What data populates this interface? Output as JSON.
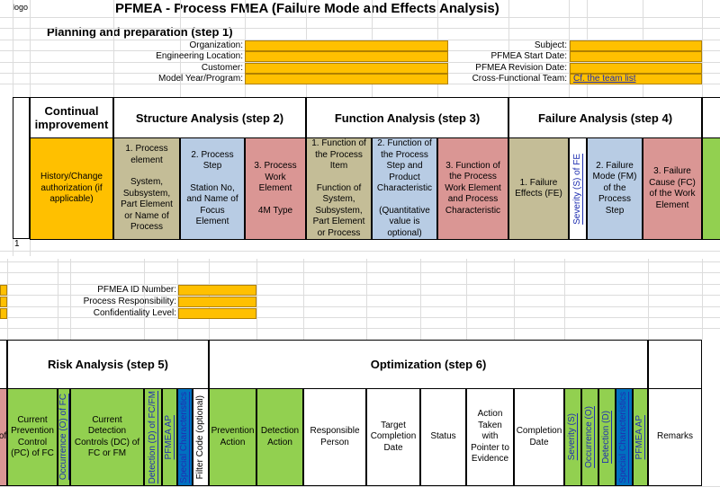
{
  "header": {
    "logo": "logo",
    "title": "PFMEA - Process FMEA (Failure Mode and Effects Analysis)"
  },
  "planning": {
    "title": "Planning and preparation (step 1)",
    "left_fields": [
      {
        "label": "Organization:"
      },
      {
        "label": "Engineering Location:"
      },
      {
        "label": "Customer:"
      },
      {
        "label": "Model Year/Program:"
      }
    ],
    "right_fields": [
      {
        "label": "Subject:"
      },
      {
        "label": "PFMEA Start Date:"
      },
      {
        "label": "PFMEA Revision Date:"
      },
      {
        "label": "Cross-Functional Team:",
        "value": "Cf. the team list"
      }
    ]
  },
  "sheet_top": {
    "sections": [
      {
        "title": "Continual improvement"
      },
      {
        "title": "Structure Analysis (step 2)"
      },
      {
        "title": "Function Analysis (step 3)"
      },
      {
        "title": "Failure Analysis (step 4)"
      }
    ],
    "columns": [
      {
        "paragraphs": [
          "History/Change authorization (if applicable)"
        ]
      },
      {
        "paragraphs": [
          "1. Process element",
          "System, Subsystem, Part Element or Name of Process"
        ]
      },
      {
        "paragraphs": [
          "2. Process Step",
          "Station No, and Name of Focus Element"
        ]
      },
      {
        "paragraphs": [
          "3. Process Work Element",
          "4M Type"
        ]
      },
      {
        "paragraphs": [
          "1. Function of the Process Item",
          "Function of System, Subsystem, Part Element or Process"
        ]
      },
      {
        "paragraphs": [
          "2. Function of the Process Step and Product Characteristic",
          "(Quantitative value is optional)"
        ]
      },
      {
        "paragraphs": [
          "3. Function of the Process Work Element and Process Characteristic"
        ]
      },
      {
        "paragraphs": [
          "1. Failure Effects (FE)"
        ]
      },
      {
        "paragraphs": [
          "Severity (S) of FE"
        ]
      },
      {
        "paragraphs": [
          "2. Failure Mode (FM) of the Process Step"
        ]
      },
      {
        "paragraphs": [
          "3. Failure Cause (FC) of the Work Element"
        ]
      }
    ],
    "rows": [
      "1"
    ]
  },
  "sheet_bottom": {
    "fields": [
      {
        "label": "PFMEA ID Number:"
      },
      {
        "label": "Process Responsibility:"
      },
      {
        "label": "Confidentiality Level:"
      }
    ],
    "sections": [
      {
        "title": "Risk Analysis (step 5)"
      },
      {
        "title": "Optimization (step 6)"
      }
    ],
    "columns": [
      {
        "paragraphs": [
          "of"
        ]
      },
      {
        "paragraphs": [
          "Current Prevention Control (PC) of FC"
        ]
      },
      {
        "paragraphs": [
          "Occurrence (O) of FC"
        ]
      },
      {
        "paragraphs": [
          "Current Detection Controls (DC) of FC or FM"
        ]
      },
      {
        "paragraphs": [
          "Detection (D) of FC/FM"
        ]
      },
      {
        "paragraphs": [
          "PFMEA AP"
        ]
      },
      {
        "paragraphs": [
          "Special Characteristics"
        ]
      },
      {
        "paragraphs": [
          "Filter Code (optional)"
        ]
      },
      {
        "paragraphs": [
          "Prevention Action"
        ]
      },
      {
        "paragraphs": [
          "Detection Action"
        ]
      },
      {
        "paragraphs": [
          "Responsible Person"
        ]
      },
      {
        "paragraphs": [
          "Target Completion Date"
        ]
      },
      {
        "paragraphs": [
          "Status"
        ]
      },
      {
        "paragraphs": [
          "Action Taken with Pointer to Evidence"
        ]
      },
      {
        "paragraphs": [
          "Completion Date"
        ]
      },
      {
        "paragraphs": [
          "Severity (S)"
        ]
      },
      {
        "paragraphs": [
          "Occurrence (O)"
        ]
      },
      {
        "paragraphs": [
          "Detection (D)"
        ]
      },
      {
        "paragraphs": [
          "Special Characteristics"
        ]
      },
      {
        "paragraphs": [
          "PFMEA AP"
        ]
      },
      {
        "paragraphs": [
          "Remarks"
        ]
      }
    ]
  }
}
